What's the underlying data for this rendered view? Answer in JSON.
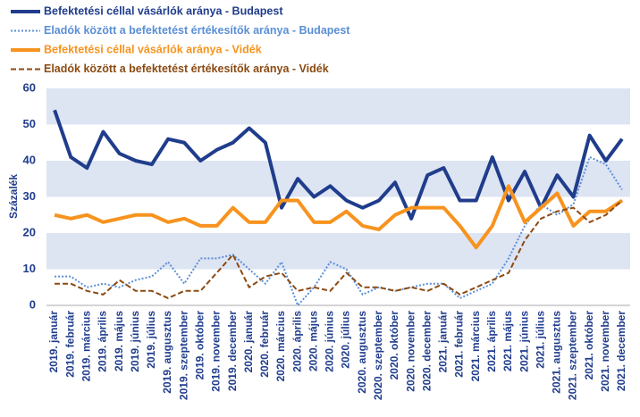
{
  "chart_data": {
    "type": "line",
    "y_label": "Százalék",
    "categories": [
      "2019. január",
      "2019. február",
      "2019. március",
      "2019. április",
      "2019. május",
      "2019. június",
      "2019. július",
      "2019. augusztus",
      "2019. szeptember",
      "2019. október",
      "2019. november",
      "2019. december",
      "2020. január",
      "2020. február",
      "2020. március",
      "2020. április",
      "2020. május",
      "2020. június",
      "2020. július",
      "2020. augusztus",
      "2020. szeptember",
      "2020. október",
      "2020. november",
      "2020. december",
      "2021. január",
      "2021. február",
      "2021. március",
      "2021. április",
      "2021. május",
      "2021. június",
      "2021. július",
      "2021. augusztus",
      "2021. szeptember",
      "2021. október",
      "2021. november",
      "2021. december"
    ],
    "series": [
      {
        "name": "Befektetési céllal vásárlók aránya - Budapest",
        "color": "#203d8c",
        "style": "solid",
        "width": 4,
        "values": [
          54,
          41,
          38,
          48,
          42,
          40,
          39,
          46,
          45,
          40,
          43,
          45,
          49,
          45,
          27,
          35,
          30,
          33,
          29,
          27,
          29,
          34,
          24,
          36,
          38,
          29,
          29,
          41,
          29,
          37,
          27,
          36,
          30,
          47,
          40,
          46
        ]
      },
      {
        "name": "Eladók között a befektetést értékesítők aránya - Budapest",
        "color": "#5b8fd6",
        "style": "dotted",
        "width": 2,
        "values": [
          8,
          8,
          5,
          6,
          5,
          7,
          8,
          12,
          6,
          13,
          13,
          14,
          10,
          6,
          12,
          0,
          5,
          12,
          10,
          3,
          5,
          4,
          5,
          6,
          6,
          2,
          4,
          6,
          13,
          22,
          28,
          25,
          28,
          41,
          39,
          32
        ]
      },
      {
        "name": "Befektetési céllal vásárlók aránya - Vidék",
        "color": "#f7931e",
        "style": "solid",
        "width": 4,
        "values": [
          25,
          24,
          25,
          23,
          24,
          25,
          25,
          23,
          24,
          22,
          22,
          27,
          23,
          23,
          29,
          29,
          23,
          23,
          26,
          22,
          21,
          25,
          27,
          27,
          27,
          22,
          16,
          22,
          33,
          23,
          27,
          31,
          22,
          26,
          26,
          29
        ]
      },
      {
        "name": "Eladók között a befektetést értékesítők aránya - Vidék",
        "color": "#8b4a12",
        "style": "dashed",
        "width": 2,
        "values": [
          6,
          6,
          4,
          3,
          7,
          4,
          4,
          2,
          4,
          4,
          9,
          14,
          5,
          8,
          9,
          4,
          5,
          4,
          9,
          5,
          5,
          4,
          5,
          4,
          6,
          3,
          5,
          7,
          9,
          18,
          24,
          26,
          27,
          23,
          25,
          29
        ]
      }
    ],
    "ylim": [
      0,
      60
    ],
    "yticks": [
      0,
      10,
      20,
      30,
      40,
      50,
      60
    ],
    "band_color": "#dde4f2"
  }
}
